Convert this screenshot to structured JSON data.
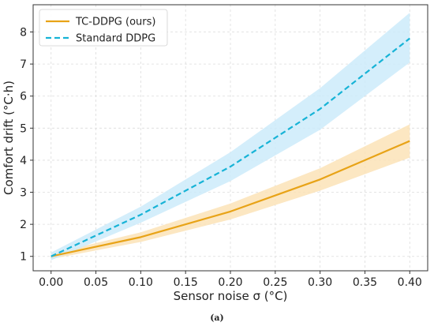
{
  "caption": "(a)",
  "chart_data": {
    "type": "line",
    "title": "",
    "xlabel": "Sensor noise σ (°C)",
    "ylabel": "Comfort drift (°C·h)",
    "xlim": [
      -0.02,
      0.42
    ],
    "ylim": [
      0.55,
      8.85
    ],
    "x_ticks": [
      0.0,
      0.05,
      0.1,
      0.15,
      0.2,
      0.25,
      0.3,
      0.35,
      0.4
    ],
    "x_tick_labels": [
      "0.00",
      "0.05",
      "0.10",
      "0.15",
      "0.20",
      "0.25",
      "0.30",
      "0.35",
      "0.40"
    ],
    "y_ticks": [
      1,
      2,
      3,
      4,
      5,
      6,
      7,
      8
    ],
    "y_tick_labels": [
      "1",
      "2",
      "3",
      "4",
      "5",
      "6",
      "7",
      "8"
    ],
    "grid": true,
    "legend_position": "top-left",
    "x": [
      0.0,
      0.1,
      0.2,
      0.3,
      0.4
    ],
    "series": [
      {
        "name": "TC-DDPG (ours)",
        "style": "solid",
        "color": "#E8A317",
        "band_color": "#FBE3B7",
        "values": [
          1.0,
          1.6,
          2.4,
          3.4,
          4.6
        ],
        "lower": [
          0.92,
          1.45,
          2.15,
          3.05,
          4.08
        ],
        "upper": [
          1.08,
          1.75,
          2.65,
          3.75,
          5.12
        ]
      },
      {
        "name": "Standard DDPG",
        "style": "dashed",
        "color": "#17B3D6",
        "band_color": "#CDEBFA",
        "values": [
          1.0,
          2.3,
          3.8,
          5.6,
          7.8
        ],
        "lower": [
          0.88,
          2.05,
          3.35,
          4.95,
          7.05
        ],
        "upper": [
          1.12,
          2.55,
          4.25,
          6.25,
          8.6
        ]
      }
    ]
  }
}
